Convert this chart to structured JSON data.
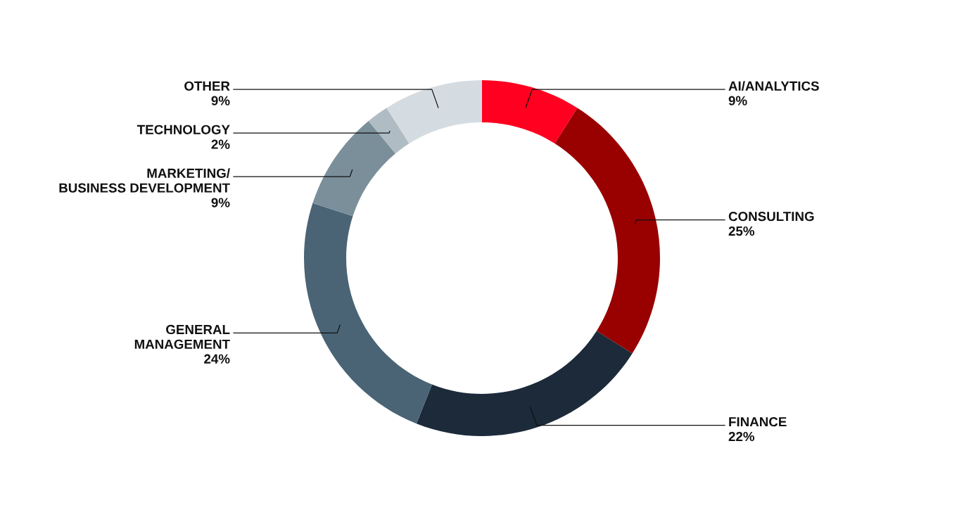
{
  "chart_data": {
    "type": "donut",
    "categories": [
      "AI/ANALYTICS",
      "CONSULTING",
      "FINANCE",
      "GENERAL\nMANAGEMENT",
      "MARKETING/\nBUSINESS DEVELOPMENT",
      "TECHNOLOGY",
      "OTHER"
    ],
    "values": [
      9,
      25,
      22,
      24,
      9,
      2,
      9
    ],
    "colors": [
      "#ff0020",
      "#990000",
      "#1c2a3a",
      "#4a6476",
      "#7a8f9a",
      "#b0bcc3",
      "#d5dce1"
    ],
    "value_labels": [
      "9%",
      "25%",
      "22%",
      "24%",
      "9%",
      "2%",
      "9%"
    ]
  }
}
